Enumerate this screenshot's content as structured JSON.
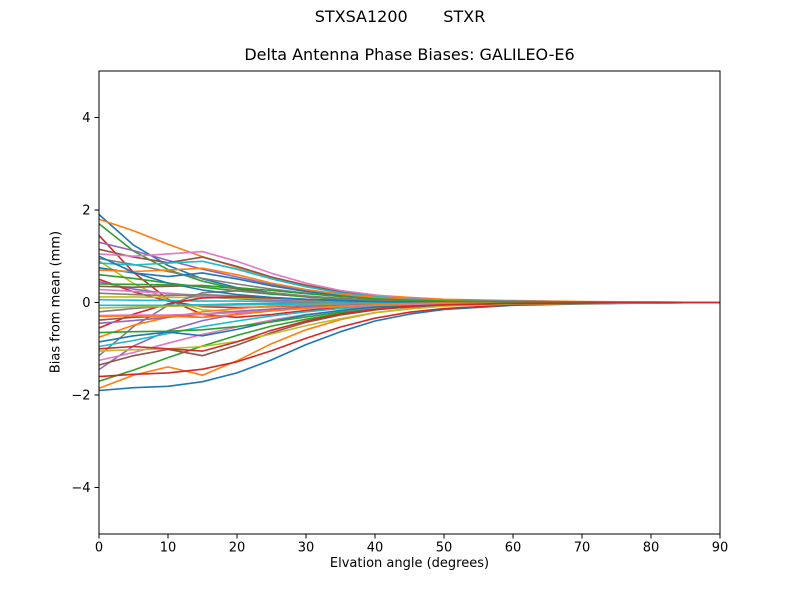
{
  "figure": {
    "suptitle": "STXSA1200       STXR",
    "title": "Delta Antenna Phase Biases: GALILEO-E6",
    "xlabel": "Elvation angle (degrees)",
    "ylabel": "Bias from mean (mm)",
    "background": "#ffffff",
    "spine_color": "#000000"
  },
  "axes": {
    "xlim": [
      0,
      90
    ],
    "ylim": [
      -5,
      5
    ],
    "x_ticks": [
      0,
      10,
      20,
      30,
      40,
      50,
      60,
      70,
      80,
      90
    ],
    "x_tick_labels": [
      "0",
      "10",
      "20",
      "30",
      "40",
      "50",
      "60",
      "70",
      "80",
      "90"
    ],
    "y_ticks": [
      4,
      2,
      0,
      -2,
      -4
    ],
    "y_tick_labels": [
      "4",
      "2",
      "0",
      "−2",
      "−4"
    ],
    "grid": false,
    "legend": "none"
  },
  "chart_data": {
    "type": "line",
    "title": "Delta Antenna Phase Biases: GALILEO-E6",
    "xlabel": "Elvation angle (degrees)",
    "ylabel": "Bias from mean (mm)",
    "xlim": [
      0,
      90
    ],
    "ylim": [
      -5,
      5
    ],
    "grid": false,
    "legend_position": "none",
    "palette": [
      "#1f77b4",
      "#ff7f0e",
      "#2ca02c",
      "#d62728",
      "#9467bd",
      "#8c564b",
      "#e377c2",
      "#7f7f7f",
      "#bcbd22",
      "#17becf"
    ],
    "x": [
      0,
      5,
      10,
      15,
      20,
      25,
      30,
      35,
      40,
      45,
      50,
      60,
      70,
      80,
      90
    ],
    "series": [
      {
        "name": "line-01",
        "values": [
          1.9,
          1.24,
          0.8,
          0.51,
          0.32,
          0.21,
          0.13,
          0.08,
          0.04,
          0.02,
          0.01,
          0.01,
          0.0,
          0.0,
          0.0
        ]
      },
      {
        "name": "line-02",
        "values": [
          1.8,
          1.55,
          1.26,
          0.99,
          0.76,
          0.54,
          0.38,
          0.25,
          0.16,
          0.11,
          0.07,
          0.04,
          0.02,
          0.01,
          0.0
        ]
      },
      {
        "name": "line-03",
        "values": [
          1.7,
          1.11,
          0.71,
          0.46,
          0.29,
          0.19,
          0.12,
          0.07,
          0.03,
          0.02,
          0.01,
          0.01,
          0.0,
          0.0,
          0.0
        ]
      },
      {
        "name": "line-04",
        "values": [
          1.45,
          0.65,
          0.07,
          -0.26,
          -0.32,
          -0.26,
          -0.17,
          -0.1,
          -0.06,
          -0.03,
          -0.01,
          0.0,
          0.0,
          0.0,
          0.0
        ]
      },
      {
        "name": "line-05",
        "values": [
          1.3,
          1.12,
          0.91,
          0.72,
          0.55,
          0.39,
          0.27,
          0.18,
          0.12,
          0.08,
          0.05,
          0.03,
          0.01,
          0.01,
          0.0
        ]
      },
      {
        "name": "line-06",
        "values": [
          1.15,
          0.98,
          0.86,
          0.98,
          0.78,
          0.55,
          0.37,
          0.23,
          0.14,
          0.08,
          0.05,
          0.02,
          0.01,
          0.0,
          0.0
        ]
      },
      {
        "name": "line-07",
        "values": [
          1.05,
          1.0,
          1.05,
          1.1,
          0.89,
          0.63,
          0.42,
          0.26,
          0.16,
          0.08,
          0.05,
          0.02,
          0.01,
          0.01,
          0.0
        ]
      },
      {
        "name": "line-08",
        "values": [
          0.95,
          0.82,
          0.67,
          0.52,
          0.4,
          0.29,
          0.2,
          0.13,
          0.09,
          0.06,
          0.04,
          0.02,
          0.01,
          0.0,
          0.0
        ]
      },
      {
        "name": "line-09",
        "values": [
          0.9,
          0.41,
          0.05,
          -0.16,
          -0.2,
          -0.16,
          -0.11,
          -0.06,
          -0.04,
          -0.02,
          -0.01,
          0.0,
          0.0,
          0.0,
          0.0
        ]
      },
      {
        "name": "line-10",
        "values": [
          0.85,
          0.81,
          0.85,
          0.89,
          0.72,
          0.51,
          0.34,
          0.21,
          0.13,
          0.07,
          0.04,
          0.02,
          0.01,
          0.0,
          0.0
        ]
      },
      {
        "name": "line-11",
        "values": [
          0.75,
          0.64,
          0.56,
          0.64,
          0.51,
          0.36,
          0.24,
          0.15,
          0.09,
          0.05,
          0.03,
          0.01,
          0.01,
          0.0,
          0.0
        ]
      },
      {
        "name": "line-12",
        "values": [
          0.7,
          0.67,
          0.7,
          0.74,
          0.6,
          0.42,
          0.28,
          0.18,
          0.11,
          0.06,
          0.04,
          0.01,
          0.01,
          0.0,
          0.0
        ]
      },
      {
        "name": "line-13",
        "values": [
          0.6,
          0.52,
          0.42,
          0.33,
          0.25,
          0.18,
          0.13,
          0.08,
          0.05,
          0.04,
          0.02,
          0.01,
          0.01,
          0.0,
          0.0
        ]
      },
      {
        "name": "line-14",
        "values": [
          0.5,
          0.23,
          0.03,
          -0.09,
          -0.11,
          -0.09,
          -0.06,
          -0.04,
          -0.02,
          -0.01,
          -0.01,
          0.0,
          0.0,
          0.0,
          0.0
        ]
      },
      {
        "name": "line-15",
        "values": [
          0.45,
          0.29,
          0.19,
          0.12,
          0.08,
          0.05,
          0.03,
          0.02,
          0.01,
          0.0,
          0.0,
          0.0,
          0.0,
          0.0,
          0.0
        ]
      },
      {
        "name": "line-16",
        "values": [
          0.35,
          0.33,
          0.35,
          0.37,
          0.3,
          0.21,
          0.14,
          0.09,
          0.05,
          0.03,
          0.02,
          0.01,
          0.0,
          0.0,
          0.0
        ]
      },
      {
        "name": "line-17",
        "values": [
          0.28,
          0.24,
          0.2,
          0.15,
          0.12,
          0.08,
          0.06,
          0.04,
          0.03,
          0.02,
          0.01,
          0.01,
          0.0,
          0.0,
          0.0
        ]
      },
      {
        "name": "line-18",
        "values": [
          0.2,
          0.17,
          0.15,
          0.17,
          0.14,
          0.1,
          0.06,
          0.04,
          0.02,
          0.01,
          0.01,
          0.0,
          0.0,
          0.0,
          0.0
        ]
      },
      {
        "name": "line-19",
        "values": [
          0.12,
          0.12,
          0.11,
          0.11,
          0.1,
          0.08,
          0.06,
          0.04,
          0.03,
          0.02,
          0.01,
          0.0,
          0.0,
          0.0,
          0.0
        ]
      },
      {
        "name": "line-20",
        "values": [
          0.06,
          0.05,
          0.04,
          0.03,
          0.03,
          0.02,
          0.01,
          0.01,
          0.01,
          0.0,
          0.0,
          0.0,
          0.0,
          0.0,
          0.0
        ]
      },
      {
        "name": "line-21",
        "values": [
          -1.9,
          -1.84,
          -1.81,
          -1.71,
          -1.52,
          -1.24,
          -0.91,
          -0.63,
          -0.4,
          -0.25,
          -0.15,
          -0.06,
          -0.03,
          -0.01,
          0.0
        ]
      },
      {
        "name": "line-22",
        "values": [
          -1.85,
          -1.57,
          -1.39,
          -1.57,
          -1.26,
          -0.89,
          -0.59,
          -0.37,
          -0.22,
          -0.13,
          -0.07,
          -0.03,
          -0.01,
          0.0,
          0.0
        ]
      },
      {
        "name": "line-23",
        "values": [
          -1.7,
          -1.46,
          -1.19,
          -0.94,
          -0.71,
          -0.51,
          -0.36,
          -0.24,
          -0.15,
          -0.1,
          -0.07,
          -0.03,
          -0.02,
          -0.01,
          0.0
        ]
      },
      {
        "name": "line-24",
        "values": [
          -1.6,
          -1.55,
          -1.52,
          -1.44,
          -1.28,
          -1.04,
          -0.77,
          -0.53,
          -0.34,
          -0.21,
          -0.13,
          -0.05,
          -0.02,
          -0.01,
          0.0
        ]
      },
      {
        "name": "line-25",
        "values": [
          -1.45,
          -0.94,
          -0.61,
          -0.39,
          -0.25,
          -0.16,
          -0.1,
          -0.06,
          -0.03,
          -0.01,
          -0.01,
          0.0,
          0.0,
          0.0,
          0.0
        ]
      },
      {
        "name": "line-26",
        "values": [
          -1.35,
          -1.15,
          -1.01,
          -1.15,
          -0.92,
          -0.65,
          -0.43,
          -0.27,
          -0.16,
          -0.09,
          -0.05,
          -0.02,
          -0.01,
          0.0,
          0.0
        ]
      },
      {
        "name": "line-27",
        "values": [
          -1.25,
          -1.08,
          -0.88,
          -0.69,
          -0.53,
          -0.38,
          -0.26,
          -0.18,
          -0.11,
          -0.08,
          -0.05,
          -0.03,
          -0.01,
          -0.01,
          0.0
        ]
      },
      {
        "name": "line-28",
        "values": [
          -1.15,
          -0.52,
          -0.06,
          0.21,
          0.25,
          0.21,
          0.14,
          0.08,
          0.05,
          0.02,
          0.01,
          0.0,
          0.0,
          0.0,
          0.0
        ]
      },
      {
        "name": "line-29",
        "values": [
          -1.05,
          -1.02,
          -1.0,
          -0.95,
          -0.84,
          -0.68,
          -0.5,
          -0.35,
          -0.22,
          -0.14,
          -0.08,
          -0.03,
          -0.02,
          -0.01,
          0.0
        ]
      },
      {
        "name": "line-30",
        "values": [
          -0.95,
          -0.82,
          -0.67,
          -0.52,
          -0.4,
          -0.29,
          -0.2,
          -0.13,
          -0.09,
          -0.06,
          -0.04,
          -0.02,
          -0.01,
          0.0,
          0.0
        ]
      },
      {
        "name": "line-31",
        "values": [
          -0.85,
          -0.72,
          -0.64,
          -0.72,
          -0.58,
          -0.41,
          -0.27,
          -0.17,
          -0.1,
          -0.06,
          -0.03,
          -0.01,
          -0.01,
          0.0,
          0.0
        ]
      },
      {
        "name": "line-32",
        "values": [
          -0.75,
          -0.49,
          -0.32,
          -0.2,
          -0.13,
          -0.08,
          -0.05,
          -0.03,
          -0.02,
          -0.01,
          0.0,
          0.0,
          0.0,
          0.0,
          0.0
        ]
      },
      {
        "name": "line-33",
        "values": [
          -0.65,
          -0.63,
          -0.62,
          -0.59,
          -0.52,
          -0.42,
          -0.31,
          -0.21,
          -0.14,
          -0.08,
          -0.05,
          -0.02,
          -0.01,
          0.0,
          0.0
        ]
      },
      {
        "name": "line-34",
        "values": [
          -0.55,
          -0.25,
          -0.03,
          0.1,
          0.12,
          0.1,
          0.07,
          0.04,
          0.02,
          0.01,
          0.01,
          0.0,
          0.0,
          0.0,
          0.0
        ]
      },
      {
        "name": "line-35",
        "values": [
          -0.45,
          -0.39,
          -0.32,
          -0.25,
          -0.19,
          -0.14,
          -0.09,
          -0.06,
          -0.04,
          -0.03,
          -0.02,
          -0.01,
          0.0,
          0.0,
          0.0
        ]
      },
      {
        "name": "line-36",
        "values": [
          -0.38,
          -0.32,
          -0.29,
          -0.32,
          -0.26,
          -0.18,
          -0.12,
          -0.08,
          -0.05,
          -0.03,
          -0.02,
          -0.01,
          0.0,
          0.0,
          0.0
        ]
      },
      {
        "name": "line-37",
        "values": [
          -0.28,
          -0.27,
          -0.27,
          -0.25,
          -0.22,
          -0.18,
          -0.13,
          -0.09,
          -0.06,
          -0.04,
          -0.02,
          -0.01,
          0.0,
          0.0,
          0.0
        ]
      },
      {
        "name": "line-38",
        "values": [
          -0.2,
          -0.13,
          -0.08,
          -0.05,
          -0.03,
          -0.02,
          -0.01,
          -0.01,
          0.0,
          0.0,
          0.0,
          0.0,
          0.0,
          0.0,
          0.0
        ]
      },
      {
        "name": "line-39",
        "values": [
          -0.12,
          -0.1,
          -0.08,
          -0.07,
          -0.05,
          -0.04,
          -0.03,
          -0.02,
          -0.01,
          -0.01,
          0.0,
          0.0,
          0.0,
          0.0,
          0.0
        ]
      },
      {
        "name": "line-40",
        "values": [
          -0.06,
          -0.06,
          -0.06,
          -0.05,
          -0.05,
          -0.04,
          -0.03,
          -0.02,
          -0.01,
          -0.01,
          0.0,
          0.0,
          0.0,
          0.0,
          0.0
        ]
      },
      {
        "name": "line-41",
        "values": [
          1.0,
          0.65,
          0.42,
          0.27,
          0.17,
          0.11,
          0.07,
          0.04,
          0.02,
          0.01,
          0.01,
          0.0,
          0.0,
          0.0,
          0.0
        ]
      },
      {
        "name": "line-42",
        "values": [
          -0.3,
          -0.29,
          -0.3,
          -0.32,
          -0.26,
          -0.18,
          -0.12,
          -0.08,
          -0.05,
          -0.02,
          -0.01,
          -0.01,
          0.0,
          0.0,
          0.0
        ]
      },
      {
        "name": "line-43",
        "values": [
          0.4,
          0.39,
          0.38,
          0.36,
          0.32,
          0.26,
          0.19,
          0.13,
          0.08,
          0.05,
          0.03,
          0.01,
          0.01,
          0.0,
          0.0
        ]
      },
      {
        "name": "line-44",
        "values": [
          -1.0,
          -0.95,
          -1.0,
          -1.05,
          -0.85,
          -0.6,
          -0.4,
          -0.25,
          -0.15,
          -0.08,
          -0.05,
          -0.02,
          -0.01,
          0.0,
          0.0
        ]
      }
    ]
  }
}
